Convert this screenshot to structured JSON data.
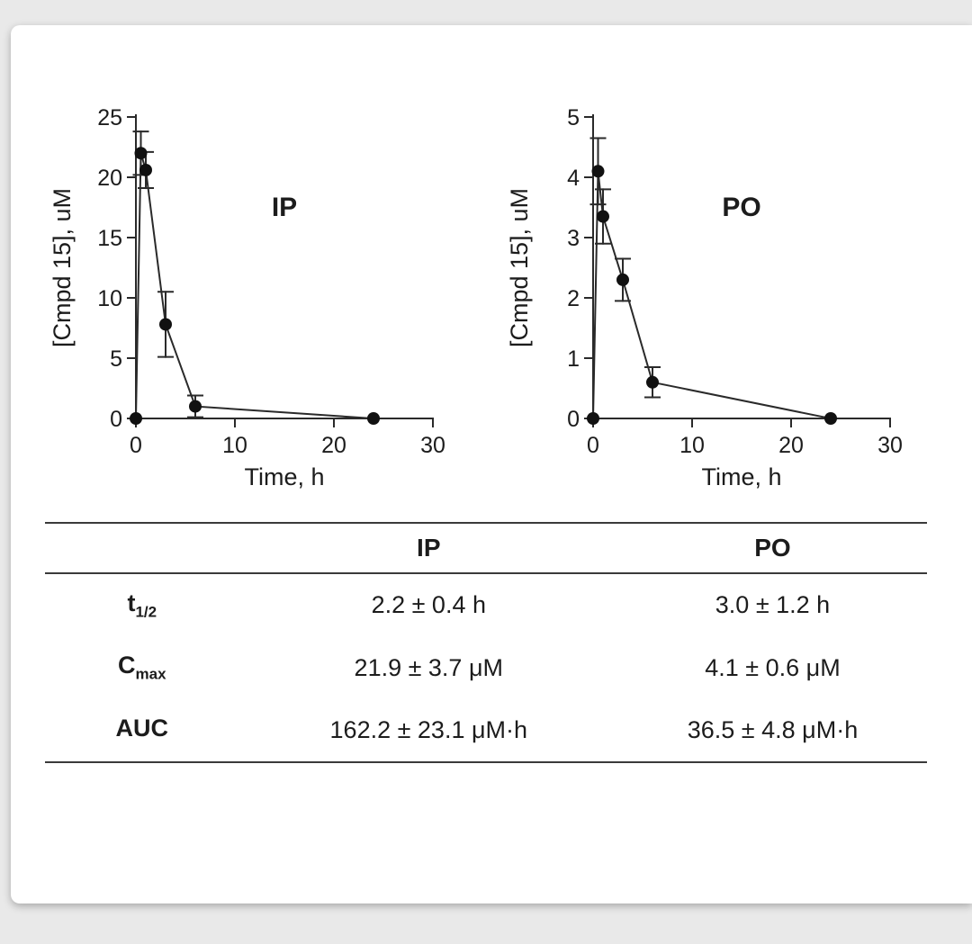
{
  "chart_data": [
    {
      "type": "scatter",
      "title": "IP",
      "xlabel": "Time, h",
      "ylabel": "[Cmpd 15], uM",
      "xlim": [
        0,
        30
      ],
      "ylim": [
        0,
        25
      ],
      "xticks": [
        0,
        10,
        20,
        30
      ],
      "yticks": [
        0,
        5,
        10,
        15,
        20,
        25
      ],
      "x": [
        0,
        0.5,
        1,
        3,
        6,
        24
      ],
      "y": [
        0,
        22.0,
        20.6,
        7.8,
        1.0,
        0
      ],
      "yerr": [
        0,
        1.8,
        1.5,
        2.7,
        0.9,
        0
      ],
      "grid": false,
      "legend": "none"
    },
    {
      "type": "scatter",
      "title": "PO",
      "xlabel": "Time, h",
      "ylabel": "[Cmpd 15], uM",
      "xlim": [
        0,
        30
      ],
      "ylim": [
        0,
        5
      ],
      "xticks": [
        0,
        10,
        20,
        30
      ],
      "yticks": [
        0,
        1,
        2,
        3,
        4,
        5
      ],
      "x": [
        0,
        0.5,
        1,
        3,
        6,
        24
      ],
      "y": [
        0,
        4.1,
        3.35,
        2.3,
        0.6,
        0
      ],
      "yerr": [
        0,
        0.55,
        0.45,
        0.35,
        0.25,
        0
      ],
      "grid": false,
      "legend": "none"
    }
  ],
  "table": {
    "headers": [
      "",
      "IP",
      "PO"
    ],
    "rows": [
      {
        "label": "t",
        "label_sub": "1/2",
        "ip": "2.2 ± 0.4 h",
        "po": "3.0 ± 1.2 h"
      },
      {
        "label": "C",
        "label_sub": "max",
        "ip": "21.9 ± 3.7 μM",
        "po": "4.1 ± 0.6 μM"
      },
      {
        "label": "AUC",
        "label_sub": "",
        "ip": "162.2 ± 23.1 μM·h",
        "po": "36.5 ± 4.8 μM·h"
      }
    ]
  },
  "colors": {
    "ink": "#1c1c1c",
    "axis": "#2a2a2a",
    "marker": "#111111",
    "rule": "#3a3a3a",
    "card_bg": "#ffffff",
    "page_bg": "#e9e9e9"
  }
}
